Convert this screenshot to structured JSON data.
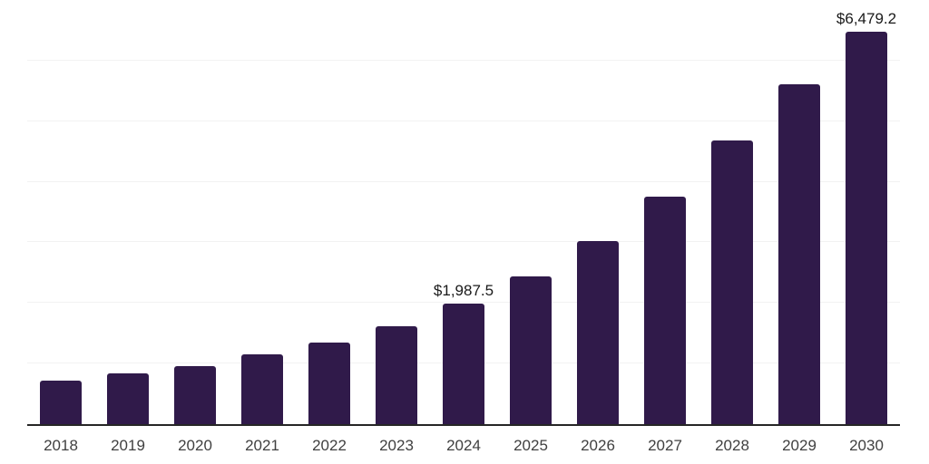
{
  "chart_data": {
    "type": "bar",
    "title": "",
    "xlabel": "",
    "ylabel": "",
    "categories": [
      "2018",
      "2019",
      "2020",
      "2021",
      "2022",
      "2023",
      "2024",
      "2025",
      "2026",
      "2027",
      "2028",
      "2029",
      "2030"
    ],
    "values": [
      720,
      840,
      955,
      1150,
      1350,
      1615,
      1987.5,
      2440,
      3020,
      3755,
      4680,
      5610,
      6479.2
    ],
    "annotations": [
      {
        "category": "2024",
        "text": "$1,987.5"
      },
      {
        "category": "2030",
        "text": "$6,479.2"
      }
    ],
    "ylim": [
      0,
      7000
    ],
    "gridline_step": 1000,
    "grid": true,
    "legend": "none",
    "colors": {
      "bar": "#301a4a",
      "gridline": "#f2f2f2",
      "axis_line": "#262626",
      "tick_label": "#404040",
      "data_label": "#1a1a1a",
      "background": "#ffffff"
    }
  }
}
